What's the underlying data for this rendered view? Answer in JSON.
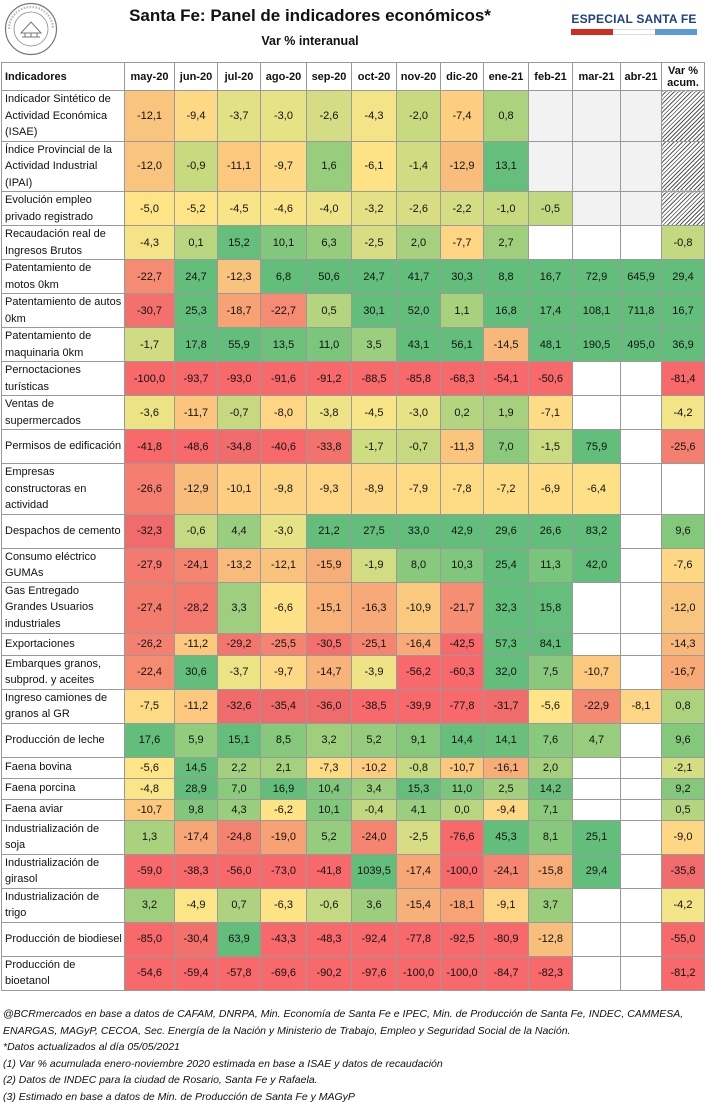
{
  "header": {
    "title": "Santa Fe: Panel de indicadores económicos*",
    "subtitle": "Var % interanual",
    "badge": "ESPECIAL SANTA FE",
    "badge_colors": [
      "#cf2e1f",
      "#ffffff",
      "#5b9bd5"
    ],
    "logo_text": "BOLSA DE COMERCIO DE ROSARIO"
  },
  "table": {
    "columns": [
      "Indicadores",
      "may-20",
      "jun-20",
      "jul-20",
      "ago-20",
      "sep-20",
      "oct-20",
      "nov-20",
      "dic-20",
      "ene-21",
      "feb-21",
      "mar-21",
      "abr-21",
      "Var % acum."
    ],
    "rows": [
      {
        "label": "Indicador Sintético de Actividad Económica (ISAE)",
        "values": [
          "-12,1",
          "-9,4",
          "-3,7",
          "-3,0",
          "-2,6",
          "-4,3",
          "-2,0",
          "-7,4",
          "0,8",
          "",
          "",
          "",
          ""
        ],
        "colors": [
          "#f9c47e",
          "#fdd985",
          "#e3e185",
          "#e6e286",
          "#d4dd83",
          "#f4e487",
          "#c8da80",
          "#fdce80",
          "#acd27e",
          "gray",
          "gray",
          "gray",
          "hatch"
        ]
      },
      {
        "label": "Índice Provincial de la Actividad Industrial (IPAI)",
        "values": [
          "-12,0",
          "-0,9",
          "-11,1",
          "-9,7",
          "1,6",
          "-6,1",
          "-1,4",
          "-12,9",
          "13,1",
          "",
          "",
          "",
          ""
        ],
        "colors": [
          "#f9c47e",
          "#c8da80",
          "#fbc87e",
          "#fdd985",
          "#98cd7d",
          "#fde386",
          "#cfdc82",
          "#f8bd7b",
          "#66be7c",
          "gray",
          "gray",
          "gray",
          "hatch"
        ]
      },
      {
        "label": "Evolución empleo privado registrado",
        "values": [
          "-5,0",
          "-5,2",
          "-4,5",
          "-4,6",
          "-4,0",
          "-3,2",
          "-2,6",
          "-2,2",
          "-1,0",
          "-0,5",
          "",
          "",
          ""
        ],
        "colors": [
          "#fee487",
          "#fee487",
          "#f8e588",
          "#f9e588",
          "#eee386",
          "#e3e085",
          "#d8dd84",
          "#d4dd83",
          "#c7da80",
          "#c0d880",
          "gray",
          "gray",
          "hatch"
        ]
      },
      {
        "label": "Recaudación real de Ingresos Brutos",
        "values": [
          "-4,3",
          "0,1",
          "15,2",
          "10,1",
          "6,3",
          "-2,5",
          "2,0",
          "-7,7",
          "2,7",
          "",
          "",
          "",
          "-0,8"
        ],
        "colors": [
          "#f5e487",
          "#b8d57f",
          "#66be7c",
          "#82c77c",
          "#96cd7d",
          "#d8dd84",
          "#a6d07e",
          "#fdd583",
          "#9fce7d",
          "white",
          "white",
          "white",
          "#c2d881"
        ]
      },
      {
        "label": "Patentamiento de motos 0km",
        "values": [
          "-22,7",
          "24,7",
          "-12,3",
          "6,8",
          "50,6",
          "24,7",
          "41,7",
          "30,3",
          "8,8",
          "16,7",
          "72,9",
          "645,9",
          "29,4"
        ],
        "colors": [
          "#f58b72",
          "#63be7b",
          "#f9c27d",
          "#63be7b",
          "#63be7b",
          "#63be7b",
          "#63be7b",
          "#63be7b",
          "#63be7b",
          "#63be7b",
          "#63be7b",
          "#63be7b",
          "#63be7b"
        ]
      },
      {
        "label": "Patentamiento de autos 0km",
        "values": [
          "-30,7",
          "25,3",
          "-18,7",
          "-22,7",
          "0,5",
          "30,1",
          "52,0",
          "1,1",
          "16,8",
          "17,4",
          "108,1",
          "711,8",
          "16,7"
        ],
        "colors": [
          "#f3706d",
          "#63be7b",
          "#f7a275",
          "#f58b72",
          "#b4d47f",
          "#63be7b",
          "#63be7b",
          "#a8d17e",
          "#63be7b",
          "#63be7b",
          "#63be7b",
          "#63be7b",
          "#63be7b"
        ]
      },
      {
        "label": "Patentamiento de maquinaria 0km",
        "values": [
          "-1,7",
          "17,8",
          "55,9",
          "13,5",
          "11,0",
          "3,5",
          "43,1",
          "56,1",
          "-14,5",
          "48,1",
          "190,5",
          "495,0",
          "36,9"
        ],
        "colors": [
          "#cfdc82",
          "#63be7b",
          "#63be7b",
          "#6ec17b",
          "#7cc57c",
          "#9bce7e",
          "#63be7b",
          "#63be7b",
          "#f9b87b",
          "#63be7b",
          "#63be7b",
          "#63be7b",
          "#63be7b"
        ]
      },
      {
        "label": "Pernoctaciones turísticas",
        "values": [
          "-100,0",
          "-93,7",
          "-93,0",
          "-91,6",
          "-91,2",
          "-88,5",
          "-85,8",
          "-68,3",
          "-54,1",
          "-50,6",
          "",
          "",
          "-81,4"
        ],
        "colors": [
          "#f8696b",
          "#f8696b",
          "#f8696b",
          "#f8696b",
          "#f8696b",
          "#f8696b",
          "#f8696b",
          "#f8696b",
          "#f8696b",
          "#f8696b",
          "white",
          "white",
          "#f8696b"
        ]
      },
      {
        "label": "Ventas de supermercados",
        "values": [
          "-3,6",
          "-11,7",
          "-0,7",
          "-8,0",
          "-3,8",
          "-4,5",
          "-3,0",
          "0,2",
          "1,9",
          "-7,1",
          "",
          "",
          "-4,2"
        ],
        "colors": [
          "#ece385",
          "#fbc57d",
          "#c6d981",
          "#fdd584",
          "#eee386",
          "#f8e588",
          "#e6e286",
          "#b4d47f",
          "#a6d07e",
          "#fddc85",
          "white",
          "white",
          "#f3e487"
        ]
      },
      {
        "label": "Permisos de edificación",
        "values": [
          "-41,8",
          "-48,6",
          "-34,8",
          "-40,6",
          "-33,8",
          "-1,7",
          "-0,7",
          "-11,3",
          "7,0",
          "-1,5",
          "75,9",
          "",
          "-25,6"
        ],
        "colors": [
          "#f8696b",
          "#f8696b",
          "#f06b6c",
          "#f8696b",
          "#f2726d",
          "#cedc82",
          "#c6d981",
          "#fac67d",
          "#8bca7d",
          "#cbdb82",
          "#63be7b",
          "white",
          "#f47f70"
        ]
      },
      {
        "label": "Empresas constructoras en actividad",
        "values": [
          "-26,6",
          "-12,9",
          "-10,1",
          "-9,8",
          "-9,3",
          "-8,9",
          "-7,9",
          "-7,8",
          "-7,2",
          "-6,9",
          "-6,4",
          "",
          ""
        ],
        "colors": [
          "#f47e70",
          "#f8bd7b",
          "#fdcd81",
          "#fdd483",
          "#fdd584",
          "#fdd785",
          "#fddb85",
          "#fddb85",
          "#fddc85",
          "#fedd86",
          "#fee086",
          "white",
          "white"
        ]
      },
      {
        "label": "Despachos de cemento",
        "values": [
          "-32,3",
          "-0,6",
          "4,4",
          "-3,0",
          "21,2",
          "27,5",
          "33,0",
          "42,9",
          "29,6",
          "26,6",
          "83,2",
          "",
          "9,6"
        ],
        "colors": [
          "#f06b6c",
          "#c4d981",
          "#99ce7e",
          "#e6e286",
          "#63be7b",
          "#63be7b",
          "#63be7b",
          "#63be7b",
          "#63be7b",
          "#63be7b",
          "#63be7b",
          "white",
          "#84c87c"
        ]
      },
      {
        "label": "Consumo eléctrico GUMAs",
        "values": [
          "-27,9",
          "-24,1",
          "-13,2",
          "-12,1",
          "-15,9",
          "-1,9",
          "8,0",
          "10,3",
          "25,4",
          "11,3",
          "42,0",
          "",
          "-7,6"
        ],
        "colors": [
          "#f47a6f",
          "#f58570",
          "#f8bb7b",
          "#f9c27d",
          "#f7ad77",
          "#d1dc83",
          "#88c97d",
          "#80c67c",
          "#63be7b",
          "#7ac57c",
          "#63be7b",
          "white",
          "#fdd784"
        ]
      },
      {
        "label": "Gas Entregado Grandes Usuarios industriales",
        "values": [
          "-27,4",
          "-28,2",
          "3,3",
          "-6,6",
          "-15,1",
          "-16,3",
          "-10,9",
          "-21,7",
          "32,3",
          "15,8",
          "",
          "",
          "-12,0"
        ],
        "colors": [
          "#f47c6f",
          "#f3796f",
          "#9ece7e",
          "#fee186",
          "#f7b179",
          "#f7aa77",
          "#fbc97e",
          "#f68e73",
          "#63be7b",
          "#66be7c",
          "white",
          "white",
          "#f9c47e"
        ]
      },
      {
        "label": "Exportaciones",
        "values": [
          "-26,2",
          "-11,2",
          "-29,2",
          "-25,5",
          "-30,5",
          "-25,1",
          "-16,4",
          "-42,5",
          "57,3",
          "84,1",
          "",
          "",
          "-14,3"
        ],
        "colors": [
          "#f48071",
          "#fbc87e",
          "#f3766e",
          "#f48371",
          "#f3716d",
          "#f48471",
          "#f7aa77",
          "#f8696b",
          "#63be7b",
          "#63be7b",
          "white",
          "white",
          "#f9b87b"
        ]
      },
      {
        "label": "Embarques granos, subprod. y aceites",
        "values": [
          "-22,4",
          "30,6",
          "-3,7",
          "-9,7",
          "-14,7",
          "-3,9",
          "-56,2",
          "-60,3",
          "32,0",
          "7,5",
          "-10,7",
          "",
          "-16,7"
        ],
        "colors": [
          "#f58c72",
          "#63be7b",
          "#ece385",
          "#fdd985",
          "#f8b37a",
          "#eee386",
          "#f8696b",
          "#f8696b",
          "#63be7b",
          "#8ac97d",
          "#fbc87e",
          "white",
          "#f7a976"
        ]
      },
      {
        "label": "Ingreso camiones de granos al GR",
        "values": [
          "-7,5",
          "-11,2",
          "-32,6",
          "-35,4",
          "-36,0",
          "-38,5",
          "-39,9",
          "-77,8",
          "-31,7",
          "-5,6",
          "-22,9",
          "-8,1",
          "0,8"
        ],
        "colors": [
          "#fdda85",
          "#fbc87e",
          "#f06b6c",
          "#f06b6c",
          "#f06b6c",
          "#f8696b",
          "#f8696b",
          "#f8696b",
          "#f06d6c",
          "#fee387",
          "#f58a72",
          "#fdd584",
          "#acd27e"
        ]
      },
      {
        "label": "Producción de leche",
        "values": [
          "17,6",
          "5,9",
          "15,1",
          "8,5",
          "3,2",
          "5,2",
          "9,1",
          "14,4",
          "14,1",
          "7,6",
          "4,7",
          "",
          "9,6"
        ],
        "colors": [
          "#63be7b",
          "#92cc7d",
          "#66be7c",
          "#86c87c",
          "#9fce7d",
          "#95cc7d",
          "#85c87c",
          "#68bf7b",
          "#6ac07b",
          "#89c97d",
          "#98cd7d",
          "white",
          "#84c87c"
        ]
      },
      {
        "label": "Faena bovina",
        "values": [
          "-5,6",
          "14,5",
          "2,2",
          "2,1",
          "-7,3",
          "-10,2",
          "-0,8",
          "-10,7",
          "-16,1",
          "2,0",
          "",
          "",
          "-2,1"
        ],
        "colors": [
          "#fee387",
          "#67bf7b",
          "#a4cf7e",
          "#a5d07e",
          "#fddb85",
          "#fccd80",
          "#c7d981",
          "#fbc87e",
          "#f7ad78",
          "#a6d07e",
          "white",
          "white",
          "#d4dd83"
        ]
      },
      {
        "label": "Faena porcina",
        "values": [
          "-4,8",
          "28,9",
          "7,0",
          "16,9",
          "10,4",
          "3,4",
          "15,3",
          "11,0",
          "2,5",
          "14,2",
          "",
          "",
          "9,2"
        ],
        "colors": [
          "#fae588",
          "#63be7b",
          "#8bca7d",
          "#63be7b",
          "#80c67c",
          "#9dce7e",
          "#66be7c",
          "#7cc57c",
          "#a1cf7e",
          "#6cc07b",
          "white",
          "white",
          "#85c87c"
        ]
      },
      {
        "label": "Faena aviar",
        "values": [
          "-10,7",
          "9,8",
          "4,3",
          "-6,2",
          "10,1",
          "-0,4",
          "4,1",
          "0,0",
          "-9,4",
          "7,1",
          "",
          "",
          "0,5"
        ],
        "colors": [
          "#fbc87e",
          "#82c77c",
          "#9acd7e",
          "#fee286",
          "#81c77c",
          "#c1d881",
          "#9bce7e",
          "#b8d57f",
          "#fdd985",
          "#8bca7d",
          "white",
          "white",
          "#b4d47f"
        ]
      },
      {
        "label": "Industrialización de soja",
        "values": [
          "1,3",
          "-17,4",
          "-24,8",
          "-19,0",
          "5,2",
          "-24,0",
          "-2,5",
          "-76,6",
          "45,3",
          "8,1",
          "25,1",
          "",
          "-9,0"
        ],
        "colors": [
          "#a9d17e",
          "#f7a676",
          "#f58371",
          "#f7a175",
          "#95cc7d",
          "#f58571",
          "#d6dd84",
          "#f8696b",
          "#63be7b",
          "#87c87c",
          "#63be7b",
          "white",
          "#fdd684"
        ]
      },
      {
        "label": "Industrialización de girasol",
        "values": [
          "-59,0",
          "-38,3",
          "-56,0",
          "-73,0",
          "-41,8",
          "1039,5",
          "-17,4",
          "-100,0",
          "-24,1",
          "-15,8",
          "29,4",
          "",
          "-35,8"
        ],
        "colors": [
          "#f8696b",
          "#f8696b",
          "#f8696b",
          "#f8696b",
          "#f8696b",
          "#63be7b",
          "#f7a676",
          "#f8696b",
          "#f58570",
          "#f7ad78",
          "#63be7b",
          "white",
          "#f06b6c"
        ]
      },
      {
        "label": "Industrialización de trigo",
        "values": [
          "3,2",
          "-4,9",
          "0,7",
          "-6,3",
          "-0,6",
          "3,6",
          "-15,4",
          "-18,1",
          "-9,1",
          "3,7",
          "",
          "",
          "-4,2"
        ],
        "colors": [
          "#9fce7d",
          "#fbe587",
          "#aed27f",
          "#fee286",
          "#c4d981",
          "#9dce7e",
          "#f8b07a",
          "#f8a375",
          "#fdd584",
          "#9ccd7d",
          "white",
          "white",
          "#f3e487"
        ]
      },
      {
        "label": "Producción de biodiesel",
        "values": [
          "-85,0",
          "-30,4",
          "63,9",
          "-43,3",
          "-48,3",
          "-92,4",
          "-77,8",
          "-92,5",
          "-80,9",
          "-12,8",
          "",
          "",
          "-55,0"
        ],
        "colors": [
          "#f8696b",
          "#f3716d",
          "#63be7b",
          "#f8696b",
          "#f8696b",
          "#f8696b",
          "#f8696b",
          "#f8696b",
          "#f8696b",
          "#f8bf7c",
          "white",
          "white",
          "#f8696b"
        ]
      },
      {
        "label": "Producción de bioetanol",
        "values": [
          "-54,6",
          "-59,4",
          "-57,8",
          "-69,6",
          "-90,2",
          "-97,6",
          "-100,0",
          "-100,0",
          "-84,7",
          "-82,3",
          "",
          "",
          "-81,2"
        ],
        "colors": [
          "#f8696b",
          "#f8696b",
          "#f8696b",
          "#f8696b",
          "#f8696b",
          "#f8696b",
          "#f8696b",
          "#f8696b",
          "#f8696b",
          "#f8696b",
          "white",
          "white",
          "#f8696b"
        ]
      }
    ]
  },
  "notes": [
    "@BCRmercados en base a datos de CAFAM, DNRPA, Min. Economía de Santa Fe e IPEC, Min. de Producción de Santa Fe, INDEC, CAMMESA, ENARGAS, MAGyP, CECOA, Sec. Energía de la Nación y Ministerio de Trabajo, Empleo y Seguridad Social de la Nación.",
    "*Datos actualizados al día 05/05/2021",
    "(1) Var % acumulada enero-noviembre 2020 estimada en base a ISAE y datos de recaudación",
    "(2) Datos de INDEC para la ciudad de Rosario, Santa Fe y Rafaela.",
    "(3) Estimado en base a datos de Min. de Producción de Santa Fe y MAGyP"
  ]
}
